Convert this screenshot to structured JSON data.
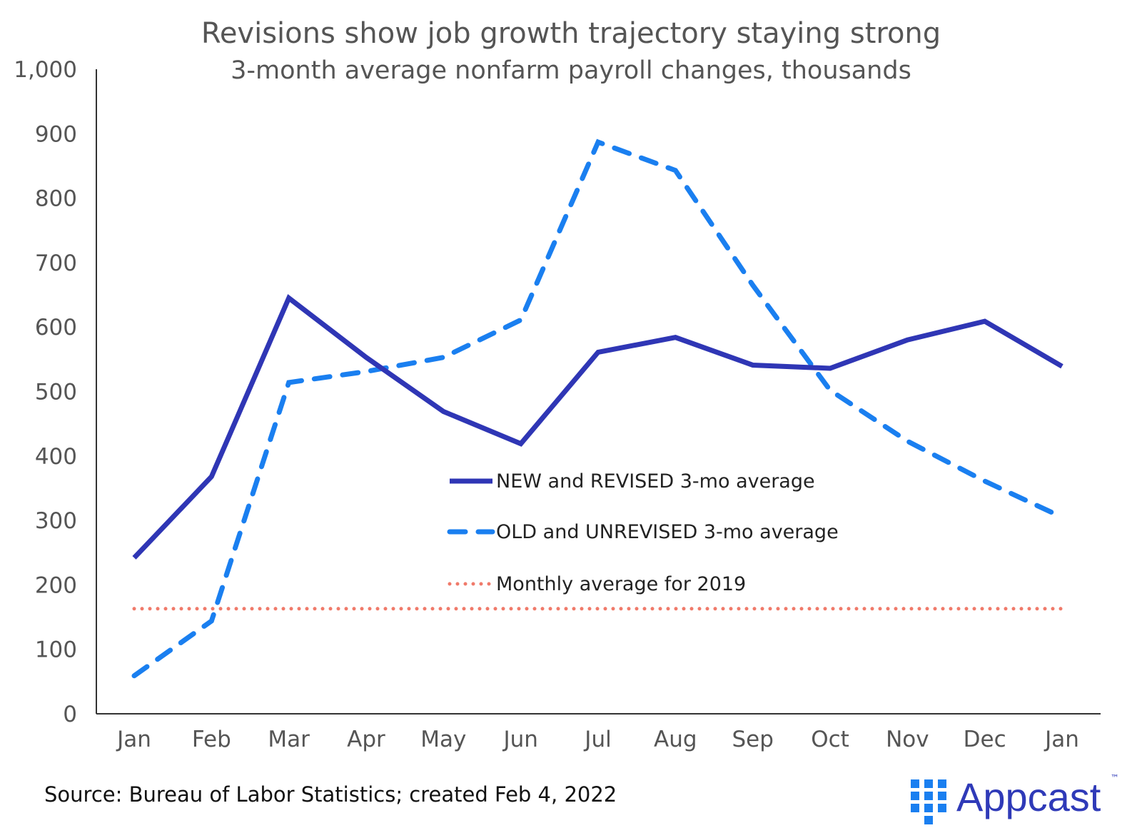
{
  "chart_data": {
    "type": "line",
    "title": "Revisions show job growth trajectory staying strong",
    "subtitle": "3-month average nonfarm payroll changes, thousands",
    "xlabel": "",
    "ylabel": "",
    "categories": [
      "Jan",
      "Feb",
      "Mar",
      "Apr",
      "May",
      "Jun",
      "Jul",
      "Aug",
      "Sep",
      "Oct",
      "Nov",
      "Dec",
      "Jan"
    ],
    "yticks": [
      "0",
      "100",
      "200",
      "300",
      "400",
      "500",
      "600",
      "700",
      "800",
      "900",
      "1,000"
    ],
    "ylim": [
      0,
      1000
    ],
    "grid": false,
    "legend_placement": "center",
    "series": [
      {
        "name": "NEW and REVISED 3-mo average",
        "style": "solid",
        "color": "#2f36b5",
        "values": [
          242,
          368,
          645,
          553,
          469,
          419,
          561,
          584,
          541,
          536,
          580,
          609,
          539
        ]
      },
      {
        "name": "OLD and UNREVISED 3-mo average",
        "style": "dashed",
        "color": "#1a7ff0",
        "values": [
          59,
          144,
          514,
          531,
          553,
          611,
          887,
          843,
          665,
          502,
          423,
          361,
          305
        ]
      },
      {
        "name": "Monthly average for 2019",
        "style": "dotted",
        "color": "#f07a6a",
        "values": [
          163,
          163,
          163,
          163,
          163,
          163,
          163,
          163,
          163,
          163,
          163,
          163,
          163
        ]
      }
    ]
  },
  "source": "Source: Bureau of Labor Statistics; created Feb 4, 2022",
  "logo": {
    "text": "Appcast",
    "trademark": "™",
    "color": "#2f3ab8",
    "icon_color": "#1a7ff0"
  }
}
